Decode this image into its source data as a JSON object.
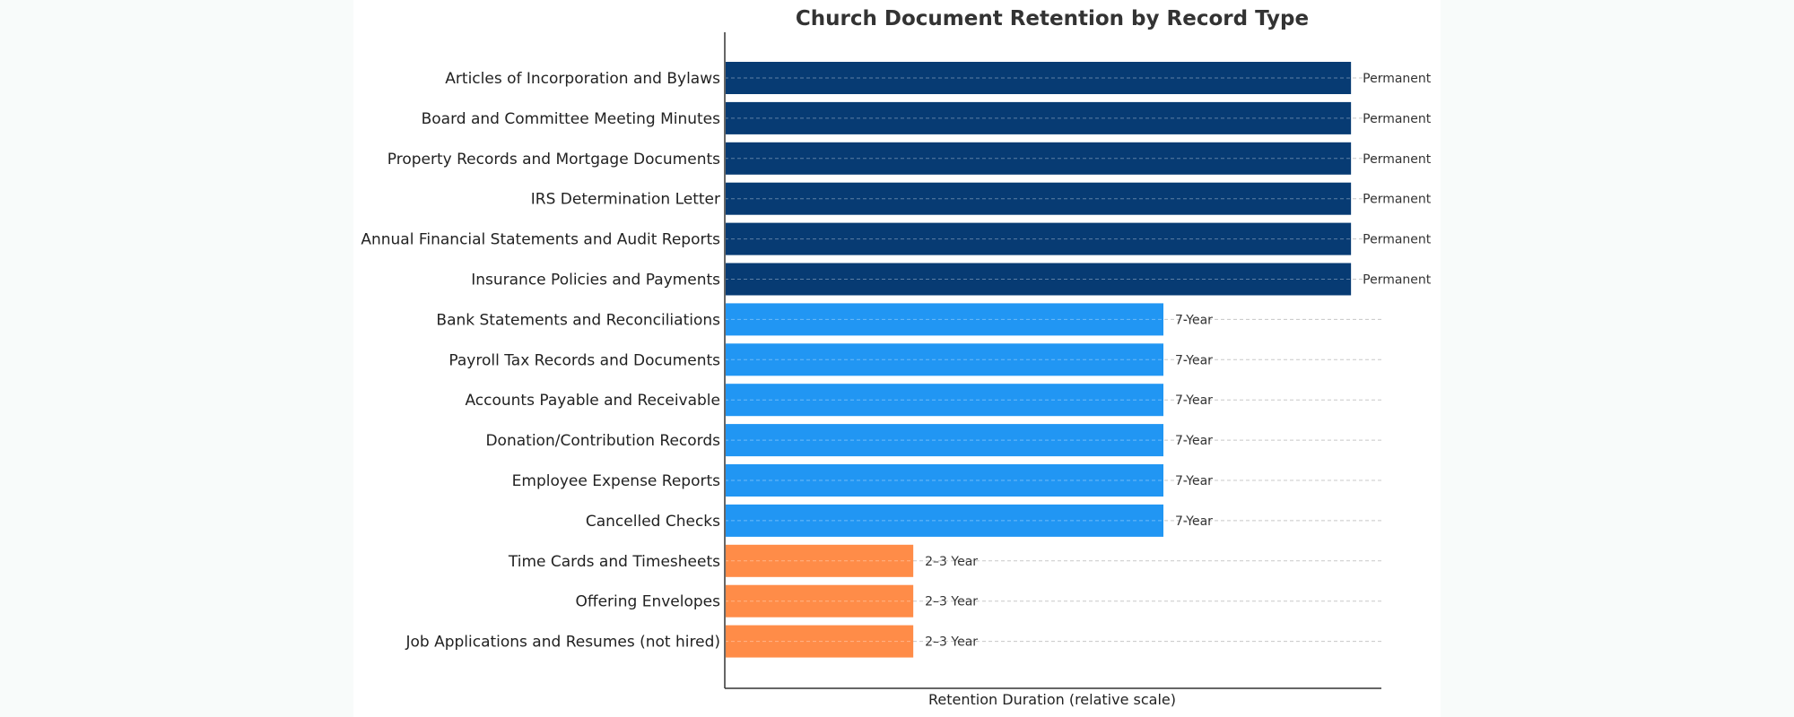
{
  "chart_data": {
    "type": "bar",
    "orientation": "horizontal",
    "title": "Church Document Retention by Record Type",
    "xlabel": "Retention Duration (relative scale)",
    "ylabel": "",
    "xlim": [
      0,
      3.15
    ],
    "grid": "horizontal dashed lines at each bar",
    "categories": [
      "Articles of Incorporation and Bylaws",
      "Board and Committee Meeting Minutes",
      "Property Records and Mortgage Documents",
      "IRS Determination Letter",
      "Annual Financial Statements and Audit Reports",
      "Insurance Policies and Payments",
      "Bank Statements and Reconciliations",
      "Payroll Tax Records and Documents",
      "Accounts Payable and Receivable",
      "Donation/Contribution Records",
      "Employee Expense Reports",
      "Cancelled Checks",
      "Time Cards and Timesheets",
      "Offering Envelopes",
      "Job Applications and Resumes (not hired)"
    ],
    "values": [
      3,
      3,
      3,
      3,
      3,
      3,
      2.1,
      2.1,
      2.1,
      2.1,
      2.1,
      2.1,
      0.9,
      0.9,
      0.9
    ],
    "labels": [
      "Permanent",
      "Permanent",
      "Permanent",
      "Permanent",
      "Permanent",
      "Permanent",
      "7-Year",
      "7-Year",
      "7-Year",
      "7-Year",
      "7-Year",
      "7-Year",
      "2–3 Year",
      "2–3 Year",
      "2–3 Year"
    ],
    "colors": {
      "Permanent": "#073b73",
      "7-Year": "#2196f3",
      "2–3 Year": "#ff8c48"
    }
  }
}
